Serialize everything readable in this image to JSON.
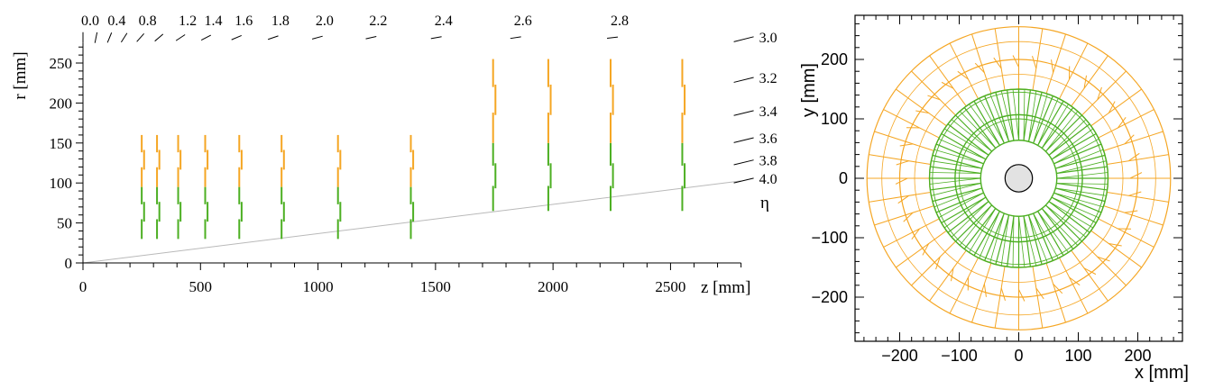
{
  "colors": {
    "green": "#4caf22",
    "orange": "#f5a623",
    "eta_line": "#b9b9b9",
    "axis": "#000000",
    "beampipe_fill": "#e2e2e2"
  },
  "chart_data": [
    {
      "type": "line",
      "description_of_panel": "r-z view",
      "xlabel": "z [mm]",
      "ylabel": "r [mm]",
      "xlim": [
        0,
        2800
      ],
      "ylim": [
        0,
        275
      ],
      "x_ticks": [
        "0",
        "500",
        "1000",
        "1500",
        "2000",
        "2500"
      ],
      "x_tick_values": [
        0,
        500,
        1000,
        1500,
        2000,
        2500
      ],
      "y_ticks": [
        "0",
        "50",
        "100",
        "150",
        "200",
        "250"
      ],
      "y_tick_values": [
        0,
        50,
        100,
        150,
        200,
        250
      ],
      "eta_label": "η",
      "eta_top_labels": [
        "0.0",
        "0.4",
        "0.8",
        "1.2",
        "1.4",
        "1.6",
        "1.8",
        "2.0",
        "2.2",
        "2.4",
        "2.6",
        "2.8"
      ],
      "eta_top_values": [
        0.0,
        0.4,
        0.8,
        1.2,
        1.4,
        1.6,
        1.8,
        2.0,
        2.2,
        2.4,
        2.6,
        2.8
      ],
      "eta_top_tick_values": [
        0.0,
        0.2,
        0.4,
        0.6,
        0.8,
        1.0,
        1.2,
        1.4,
        1.6,
        1.8,
        2.0,
        2.2,
        2.4,
        2.6,
        2.8
      ],
      "eta_right_labels": [
        "3.0",
        "3.2",
        "3.4",
        "3.6",
        "3.8",
        "4.0"
      ],
      "eta_right_values": [
        3.0,
        3.2,
        3.4,
        3.6,
        3.8,
        4.0
      ],
      "eta_line_value": 4.0,
      "inner_disks": {
        "z": [
          255,
          320,
          410,
          525,
          670,
          850,
          1090,
          1400
        ],
        "green_r": [
          30,
          95
        ],
        "orange_r": [
          95,
          160
        ]
      },
      "outer_disks": {
        "z": [
          1750,
          1985,
          2250,
          2555
        ],
        "green_r": [
          65,
          150
        ],
        "orange_r": [
          150,
          255
        ]
      }
    },
    {
      "type": "scatter",
      "description_of_panel": "x-y view",
      "xlabel": "x [mm]",
      "ylabel": "y [mm]",
      "xlim": [
        -275,
        275
      ],
      "ylim": [
        -275,
        275
      ],
      "x_ticks": [
        "−200",
        "−100",
        "0",
        "100",
        "200"
      ],
      "x_tick_values": [
        -200,
        -100,
        0,
        100,
        200
      ],
      "y_ticks": [
        "−200",
        "−100",
        "0",
        "100",
        "200"
      ],
      "y_tick_values": [
        -200,
        -100,
        0,
        100,
        200
      ],
      "green_rings_r": [
        64,
        107,
        150
      ],
      "orange_rings_r": [
        150,
        200,
        255
      ],
      "green_modules": 48,
      "orange_modules": 40,
      "beampipe_r": 23
    }
  ]
}
